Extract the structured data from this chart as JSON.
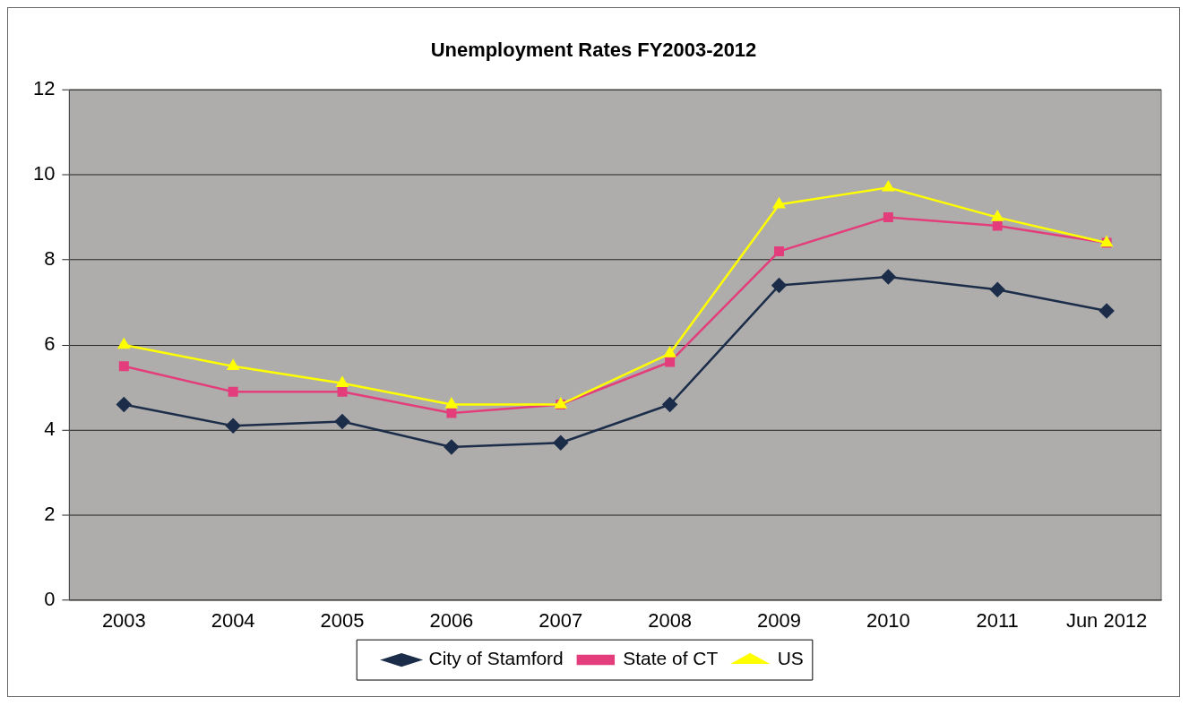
{
  "chart_data": {
    "type": "line",
    "title": "Unemployment Rates FY2003-2012",
    "categories": [
      "2003",
      "2004",
      "2005",
      "2006",
      "2007",
      "2008",
      "2009",
      "2010",
      "2011",
      "Jun 2012"
    ],
    "series": [
      {
        "name": "City of Stamford",
        "color": "#1c2d4a",
        "marker": "diamond",
        "values": [
          4.6,
          4.1,
          4.2,
          3.6,
          3.7,
          4.6,
          7.4,
          7.6,
          7.3,
          6.8
        ]
      },
      {
        "name": "State of CT",
        "color": "#e33d7c",
        "marker": "square",
        "values": [
          5.5,
          4.9,
          4.9,
          4.4,
          4.6,
          5.6,
          8.2,
          9.0,
          8.8,
          8.4
        ]
      },
      {
        "name": "US",
        "color": "#ffff00",
        "marker": "triangle",
        "values": [
          6.0,
          5.5,
          5.1,
          4.6,
          4.6,
          5.8,
          9.3,
          9.7,
          9.0,
          8.4
        ]
      }
    ],
    "ylim": [
      0,
      12
    ],
    "yticks": [
      0,
      2,
      4,
      6,
      8,
      10,
      12
    ],
    "grid": "y",
    "legend": "bottom",
    "line_style": "solid"
  }
}
